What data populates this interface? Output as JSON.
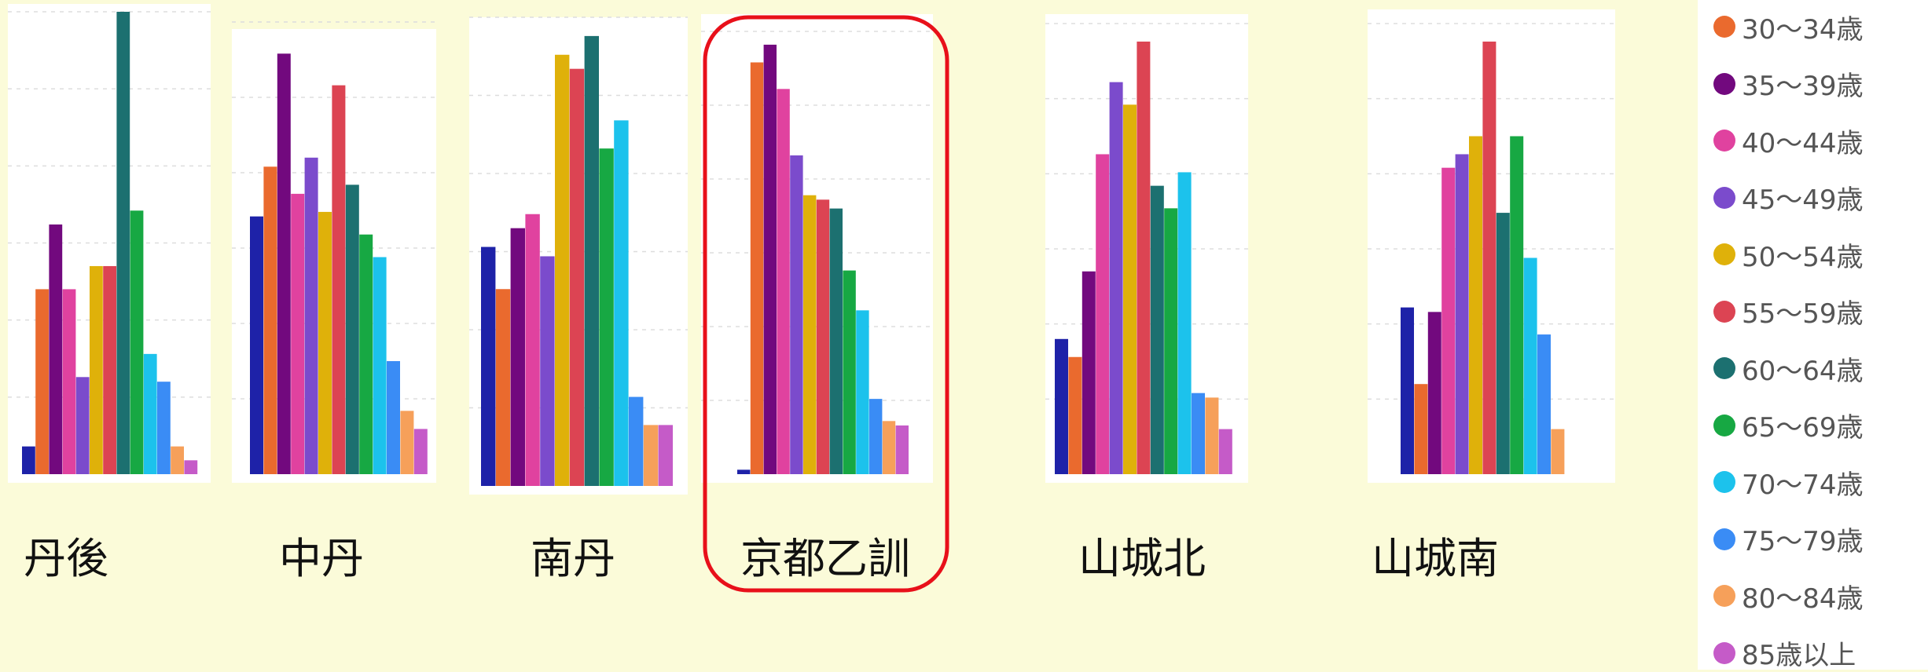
{
  "chart_data": {
    "type": "bar",
    "categories": [
      "丹後",
      "中丹",
      "南丹",
      "京都乙訓",
      "山城北",
      "山城南"
    ],
    "highlighted_category": "京都乙訓",
    "highlight_color": "#e8101a",
    "background_color": "#fbfbd9",
    "panel_color": "#ffffff",
    "gridlines": true,
    "legend_position": "right",
    "ylim": [
      0,
      1
    ],
    "series": [
      {
        "color": "#1e22a8",
        "values": [
          0.06,
          0.57,
          0.51,
          0.01,
          0.3,
          0.37
        ]
      },
      {
        "name": "30〜34歳",
        "color": "#ea6a2e",
        "values": [
          0.4,
          0.68,
          0.42,
          0.93,
          0.26,
          0.2
        ]
      },
      {
        "name": "35〜39歳",
        "color": "#72097e",
        "values": [
          0.54,
          0.93,
          0.55,
          0.97,
          0.45,
          0.36
        ]
      },
      {
        "name": "40〜44歳",
        "color": "#e0429f",
        "values": [
          0.4,
          0.62,
          0.58,
          0.87,
          0.71,
          0.68
        ]
      },
      {
        "name": "45〜49歳",
        "color": "#7b4bcc",
        "values": [
          0.21,
          0.7,
          0.49,
          0.72,
          0.87,
          0.71
        ]
      },
      {
        "name": "50〜54歳",
        "color": "#dfb10a",
        "values": [
          0.45,
          0.58,
          0.92,
          0.63,
          0.82,
          0.75
        ]
      },
      {
        "name": "55〜59歳",
        "color": "#dc4453",
        "values": [
          0.45,
          0.86,
          0.89,
          0.62,
          0.96,
          0.96
        ]
      },
      {
        "name": "60〜64歳",
        "color": "#1c7070",
        "values": [
          1.0,
          0.64,
          0.96,
          0.6,
          0.64,
          0.58
        ]
      },
      {
        "name": "65〜69歳",
        "color": "#17a843",
        "values": [
          0.57,
          0.53,
          0.72,
          0.46,
          0.59,
          0.75
        ]
      },
      {
        "name": "70〜74歳",
        "color": "#1cc2ec",
        "values": [
          0.26,
          0.48,
          0.78,
          0.37,
          0.67,
          0.48
        ]
      },
      {
        "name": "75〜79歳",
        "color": "#3a8cf5",
        "values": [
          0.2,
          0.25,
          0.19,
          0.17,
          0.18,
          0.31
        ]
      },
      {
        "name": "80〜84歳",
        "color": "#f6a05a",
        "values": [
          0.06,
          0.14,
          0.13,
          0.12,
          0.17,
          0.1
        ]
      },
      {
        "name": "85歳以上",
        "color": "#c55bc8",
        "values": [
          0.03,
          0.1,
          0.13,
          0.11,
          0.1,
          null
        ]
      }
    ]
  },
  "legend": {
    "items": [
      {
        "label": "30〜34歳",
        "color": "#ea6a2e"
      },
      {
        "label": "35〜39歳",
        "color": "#72097e"
      },
      {
        "label": "40〜44歳",
        "color": "#e0429f"
      },
      {
        "label": "45〜49歳",
        "color": "#7b4bcc"
      },
      {
        "label": "50〜54歳",
        "color": "#dfb10a"
      },
      {
        "label": "55〜59歳",
        "color": "#dc4453"
      },
      {
        "label": "60〜64歳",
        "color": "#1c7070"
      },
      {
        "label": "65〜69歳",
        "color": "#17a843"
      },
      {
        "label": "70〜74歳",
        "color": "#1cc2ec"
      },
      {
        "label": "75〜79歳",
        "color": "#3a8cf5"
      },
      {
        "label": "80〜84歳",
        "color": "#f6a05a"
      },
      {
        "label": "85歳以上",
        "color": "#c55bc8"
      }
    ]
  }
}
